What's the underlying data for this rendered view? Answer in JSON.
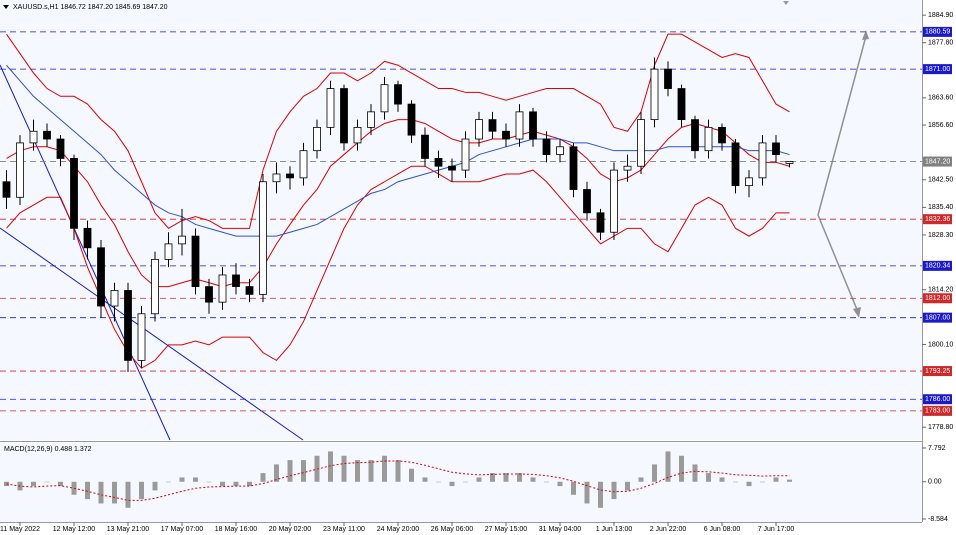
{
  "chart_data": [
    {
      "type": "candlestick",
      "title": "XAUUSD.s,H1  1846.72 1847.20 1845.69 1847.20",
      "categories": [
        null,
        "11 May 2022",
        null,
        null,
        null,
        "12 May 12:00",
        null,
        null,
        null,
        "13 May 21:00",
        null,
        null,
        null,
        "17 May 07:00",
        null,
        null,
        null,
        "18 May 16:00",
        null,
        null,
        null,
        "20 May 02:00",
        null,
        null,
        null,
        "23 May 11:00",
        null,
        null,
        null,
        "24 May 20:00",
        null,
        null,
        null,
        "26 May 06:00",
        null,
        null,
        null,
        "27 May 15:00",
        null,
        null,
        null,
        "31 May 04:00",
        null,
        null,
        null,
        "1 Jun 13:00",
        null,
        null,
        null,
        "2 Jun 22:00",
        null,
        null,
        null,
        "6 Jun 08:00",
        null,
        null,
        null,
        "7 Jun 17:00",
        null
      ],
      "open": [
        1842,
        1838,
        1852,
        1855,
        1853,
        1848,
        1830,
        1825,
        1810,
        1814,
        1796,
        1808,
        1822,
        1826,
        1828,
        1815,
        1811,
        1818,
        1815,
        1813,
        1842,
        1844,
        1843,
        1850,
        1856,
        1866,
        1852,
        1856,
        1860,
        1867,
        1862,
        1854,
        1848,
        1846,
        1845,
        1853,
        1858,
        1855,
        1853,
        1860,
        1853,
        1849,
        1851,
        1840,
        1834,
        1829,
        1845,
        1846,
        1858,
        1871,
        1866,
        1858,
        1850,
        1856,
        1852,
        1841,
        1843,
        1852,
        1846.72
      ],
      "high": [
        1845,
        1854,
        1858,
        1857,
        1854,
        1849,
        1832,
        1827,
        1816,
        1816,
        1810,
        1824,
        1829,
        1835,
        1830,
        1817,
        1820,
        1821,
        1817,
        1844,
        1847,
        1846,
        1852,
        1858,
        1868,
        1867,
        1858,
        1862,
        1869,
        1868,
        1863,
        1856,
        1850,
        1848,
        1855,
        1860,
        1860,
        1857,
        1862,
        1861,
        1855,
        1853,
        1852,
        1842,
        1835,
        1847,
        1849,
        1860,
        1874,
        1873,
        1867,
        1859,
        1858,
        1857,
        1853,
        1845,
        1854,
        1854,
        1847.2
      ],
      "low": [
        1835,
        1836,
        1850,
        1851,
        1846,
        1827,
        1822,
        1807,
        1806,
        1793,
        1794,
        1806,
        1820,
        1823,
        1813,
        1808,
        1809,
        1813,
        1811,
        1811,
        1839,
        1840,
        1841,
        1848,
        1854,
        1850,
        1850,
        1854,
        1858,
        1860,
        1852,
        1846,
        1843,
        1842,
        1843,
        1851,
        1853,
        1851,
        1851,
        1851,
        1847,
        1847,
        1838,
        1832,
        1827,
        1827,
        1842,
        1844,
        1856,
        1864,
        1856,
        1848,
        1848,
        1850,
        1839,
        1838,
        1841,
        1847,
        1845.69
      ],
      "close": [
        1838,
        1852,
        1855,
        1853,
        1848,
        1830,
        1825,
        1810,
        1814,
        1796,
        1808,
        1822,
        1826,
        1828,
        1815,
        1811,
        1818,
        1815,
        1813,
        1842,
        1844,
        1843,
        1850,
        1856,
        1866,
        1852,
        1856,
        1860,
        1867,
        1862,
        1854,
        1848,
        1846,
        1845,
        1853,
        1858,
        1855,
        1853,
        1860,
        1853,
        1849,
        1851,
        1840,
        1834,
        1829,
        1845,
        1846,
        1858,
        1871,
        1866,
        1858,
        1850,
        1856,
        1852,
        1841,
        1843,
        1852,
        1849,
        1847.2
      ],
      "series": [
        {
          "color": "#e00000",
          "values": [
            1880,
            1875,
            1870,
            1866,
            1864,
            1864,
            1862,
            1858,
            1855,
            1850,
            1842,
            1834,
            1830,
            1832,
            1833,
            1832,
            1830,
            1830,
            1830,
            1845,
            1855,
            1860,
            1864,
            1866,
            1870,
            1870,
            1868,
            1870,
            1873,
            1872,
            1870,
            1868,
            1866,
            1866,
            1865,
            1865,
            1864,
            1863,
            1864,
            1865,
            1866,
            1866,
            1866,
            1864,
            1862,
            1856,
            1855,
            1860,
            1872,
            1880,
            1880,
            1878,
            1876,
            1874,
            1875,
            1874,
            1868,
            1862,
            1860
          ]
        },
        {
          "color": "#e00000",
          "values": [
            1848,
            1850,
            1851,
            1851,
            1850,
            1846,
            1842,
            1836,
            1831,
            1824,
            1818,
            1815,
            1815,
            1816,
            1817,
            1816,
            1815,
            1816,
            1816,
            1820,
            1826,
            1831,
            1836,
            1840,
            1846,
            1849,
            1852,
            1855,
            1857,
            1858,
            1858,
            1857,
            1855,
            1853,
            1852,
            1852,
            1853,
            1853,
            1854,
            1855,
            1854,
            1853,
            1851,
            1848,
            1844,
            1842,
            1843,
            1845,
            1849,
            1853,
            1856,
            1857,
            1856,
            1855,
            1852,
            1849,
            1847,
            1847,
            1846
          ]
        },
        {
          "color": "#e00000",
          "values": [
            1830,
            1834,
            1836,
            1838,
            1838,
            1830,
            1820,
            1812,
            1804,
            1798,
            1794,
            1796,
            1800,
            1800,
            1801,
            1800,
            1802,
            1802,
            1802,
            1798,
            1796,
            1800,
            1806,
            1814,
            1822,
            1830,
            1836,
            1840,
            1842,
            1844,
            1846,
            1846,
            1844,
            1842,
            1842,
            1842,
            1843,
            1844,
            1844,
            1845,
            1842,
            1838,
            1834,
            1830,
            1826,
            1828,
            1830,
            1830,
            1826,
            1824,
            1830,
            1836,
            1838,
            1836,
            1830,
            1828,
            1830,
            1834,
            1834
          ]
        },
        {
          "color": "#3050d0",
          "values": [
            1872,
            1868,
            1864,
            1861,
            1858,
            1855,
            1852,
            1849,
            1845,
            1842,
            1839,
            1836,
            1834,
            1833,
            1831,
            1830,
            1829,
            1828,
            1828,
            1828,
            1828,
            1829,
            1830,
            1831,
            1833,
            1835,
            1837,
            1839,
            1840,
            1842,
            1843,
            1844,
            1845,
            1846,
            1847,
            1849,
            1850,
            1851,
            1852,
            1853,
            1853,
            1853,
            1852,
            1852,
            1851,
            1850,
            1850,
            1850,
            1850,
            1851,
            1851,
            1851,
            1851,
            1851,
            1851,
            1850,
            1850,
            1850,
            1849
          ]
        }
      ],
      "levels": [
        {
          "value": 1880.59,
          "color": "#1a1acc"
        },
        {
          "value": 1871,
          "label": "1871.00",
          "color": "#1a1acc"
        },
        {
          "value": 1847.2,
          "label": "1847.20",
          "color": "#808080"
        },
        {
          "value": 1832.36,
          "color": "#d02828"
        },
        {
          "value": 1820.34,
          "color": "#1a1acc"
        },
        {
          "value": 1812,
          "label": "1812.00",
          "color": "#d02828"
        },
        {
          "value": 1807,
          "label": "1807.00",
          "color": "#1a1acc"
        },
        {
          "value": 1793.25,
          "color": "#d02828"
        },
        {
          "value": 1786,
          "label": "1786.00",
          "color": "#1a1acc"
        },
        {
          "value": 1783,
          "label": "1783.00",
          "color": "#d02828"
        }
      ],
      "ylim": [
        1775.5,
        1888.8
      ],
      "yticks": [
        {
          "value": 1884.9,
          "label": "1884.90"
        },
        {
          "value": 1877.8,
          "label": "1877.80"
        },
        {
          "value": 1863.6,
          "label": "1863.60"
        },
        {
          "value": 1856.6,
          "label": "1856.60"
        },
        {
          "value": 1842.5,
          "label": "1842.50"
        },
        {
          "value": 1835.4,
          "label": "1835.40"
        },
        {
          "value": 1828.3,
          "label": "1828.30"
        },
        {
          "value": 1814.2,
          "label": "1814.20"
        },
        {
          "value": 1800.1,
          "label": "1800.10"
        },
        {
          "value": 1778.8,
          "label": "1778.80"
        }
      ]
    },
    {
      "type": "macd",
      "title": "MACD(12,26,9) 0.488 1.372",
      "values": [
        -1,
        -2,
        -1,
        0,
        -1,
        -3,
        -4,
        -5,
        -5,
        -6,
        -4,
        -2,
        0,
        1,
        1,
        0,
        -1,
        -1,
        -1,
        2,
        4,
        5,
        5,
        6,
        7,
        6,
        5,
        5,
        6,
        5,
        3,
        1,
        0,
        -1,
        0,
        1,
        2,
        2,
        2,
        1,
        0,
        -1,
        -3,
        -5,
        -6,
        -4,
        -2,
        1,
        4,
        7,
        6,
        4,
        2,
        1,
        0,
        -1,
        0,
        1,
        0.488
      ],
      "series": [
        {
          "color": "#e00000",
          "values": [
            -0.5,
            -1,
            -1.2,
            -1,
            -0.9,
            -1.5,
            -2.2,
            -3,
            -3.6,
            -4.3,
            -4.3,
            -3.8,
            -3,
            -2.2,
            -1.5,
            -1.2,
            -1.1,
            -1,
            -1,
            -0.4,
            0.5,
            1.4,
            2.1,
            2.9,
            3.7,
            4.2,
            4.4,
            4.5,
            4.8,
            4.8,
            4.5,
            3.8,
            3,
            2.2,
            1.8,
            1.6,
            1.7,
            1.8,
            1.8,
            1.7,
            1.4,
            0.9,
            0.1,
            -0.9,
            -1.9,
            -2.3,
            -2.2,
            -1.5,
            -0.4,
            1,
            2,
            2.4,
            2.3,
            2,
            1.6,
            1.5,
            1.3,
            1.4,
            1.372
          ]
        }
      ],
      "color": "#9a9a9a",
      "ylim": [
        -9.28,
        8.94
      ],
      "yticks": [
        7.792,
        {
          "value": 0,
          "label": "0.00"
        },
        -8.584
      ]
    }
  ]
}
